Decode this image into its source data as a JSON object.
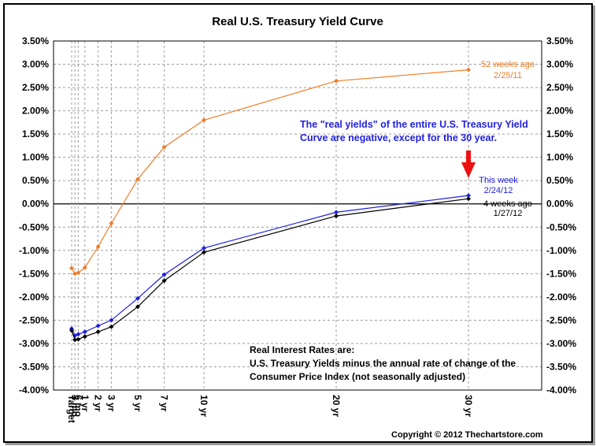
{
  "chart_data": {
    "type": "line",
    "title": "Real U.S. Treasury Yield Curve",
    "categories": [
      "Target",
      "3 mo",
      "6 mo",
      "1 yr",
      "2 yr",
      "3 yr",
      "5 yr",
      "7 yr",
      "10 yr",
      "20 yr",
      "30 yr"
    ],
    "x_positions": [
      0,
      0.25,
      0.5,
      1,
      2,
      3,
      5,
      7,
      10,
      20,
      30
    ],
    "y_ticks": [
      "3.50%",
      "3.00%",
      "2.50%",
      "2.00%",
      "1.50%",
      "1.00%",
      "0.50%",
      "0.00%",
      "-0.50%",
      "-1.00%",
      "-1.50%",
      "-2.00%",
      "-2.50%",
      "-3.00%",
      "-3.50%",
      "-4.00%"
    ],
    "ylim": [
      -4.0,
      3.5
    ],
    "series": [
      {
        "name": "52 weeks ago",
        "date": "2/25/11",
        "color": "#f07d28",
        "values": [
          -1.38,
          -1.5,
          -1.48,
          -1.37,
          -0.92,
          -0.42,
          0.53,
          1.22,
          1.8,
          2.64,
          2.88
        ]
      },
      {
        "name": "This week",
        "date": "2/24/12",
        "color": "#1f1fe0",
        "values": [
          -2.68,
          -2.83,
          -2.8,
          -2.75,
          -2.62,
          -2.5,
          -2.03,
          -1.52,
          -0.95,
          -0.18,
          0.18
        ]
      },
      {
        "name": "4 weeks ago",
        "date": "1/27/12",
        "color": "#000000",
        "values": [
          -2.72,
          -2.92,
          -2.91,
          -2.85,
          -2.75,
          -2.64,
          -2.21,
          -1.65,
          -1.04,
          -0.26,
          0.11
        ]
      }
    ],
    "annotation_real_yields": [
      "The \"real yields\" of the entire U.S. Treasury Yield",
      "Curve are negative, except for the 30 year."
    ],
    "annotation_note": [
      "Real Interest Rates are:",
      "U.S. Treasury Yields minus the annual rate of change of the",
      "Consumer Price Index (not seasonally adjusted)"
    ],
    "arrow_color": "#ee1111",
    "copyright": "Copyright © 2012 Thechartstore.com"
  }
}
